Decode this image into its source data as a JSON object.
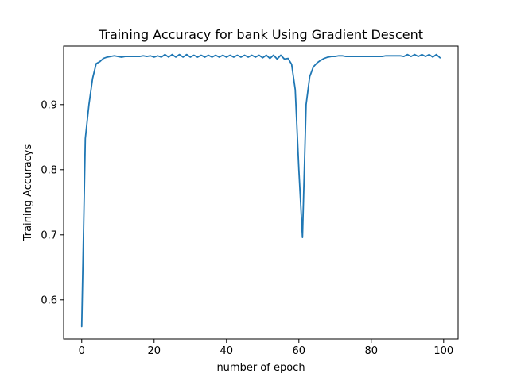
{
  "chart_data": {
    "type": "line",
    "title": "Training Accuracy for bank Using Gradient Descent",
    "xlabel": "number of epoch",
    "ylabel": "Training Accuracys",
    "xlim": [
      -5,
      104
    ],
    "ylim": [
      0.54,
      0.99
    ],
    "xticks": [
      0,
      20,
      40,
      60,
      80,
      100
    ],
    "yticks": [
      0.6,
      0.7,
      0.8,
      0.9
    ],
    "ytick_labels": [
      "0.6",
      "0.7",
      "0.8",
      "0.9"
    ],
    "grid": false,
    "color": "#1f77b4",
    "series": [
      {
        "x": [
          0,
          1,
          2,
          3,
          4,
          5,
          6,
          7,
          8,
          9,
          10,
          11,
          12,
          13,
          14,
          15,
          16,
          17,
          18,
          19,
          20,
          21,
          22,
          23,
          24,
          25,
          26,
          27,
          28,
          29,
          30,
          31,
          32,
          33,
          34,
          35,
          36,
          37,
          38,
          39,
          40,
          41,
          42,
          43,
          44,
          45,
          46,
          47,
          48,
          49,
          50,
          51,
          52,
          53,
          54,
          55,
          56,
          57,
          58,
          59,
          60,
          61,
          62,
          63,
          64,
          65,
          66,
          67,
          68,
          69,
          70,
          71,
          72,
          73,
          74,
          75,
          76,
          77,
          78,
          79,
          80,
          81,
          82,
          83,
          84,
          85,
          86,
          87,
          88,
          89,
          90,
          91,
          92,
          93,
          94,
          95,
          96,
          97,
          98,
          99
        ],
        "values": [
          0.559,
          0.848,
          0.9,
          0.94,
          0.963,
          0.966,
          0.971,
          0.973,
          0.974,
          0.975,
          0.974,
          0.973,
          0.974,
          0.974,
          0.974,
          0.974,
          0.974,
          0.975,
          0.974,
          0.975,
          0.973,
          0.975,
          0.973,
          0.977,
          0.973,
          0.977,
          0.973,
          0.977,
          0.973,
          0.977,
          0.973,
          0.976,
          0.973,
          0.976,
          0.973,
          0.976,
          0.973,
          0.976,
          0.973,
          0.976,
          0.973,
          0.976,
          0.973,
          0.976,
          0.973,
          0.976,
          0.973,
          0.976,
          0.973,
          0.976,
          0.972,
          0.976,
          0.971,
          0.976,
          0.97,
          0.976,
          0.97,
          0.971,
          0.962,
          0.923,
          0.8,
          0.696,
          0.9,
          0.943,
          0.958,
          0.964,
          0.968,
          0.971,
          0.973,
          0.974,
          0.974,
          0.975,
          0.975,
          0.974,
          0.974,
          0.974,
          0.974,
          0.974,
          0.974,
          0.974,
          0.974,
          0.974,
          0.974,
          0.974,
          0.975,
          0.975,
          0.975,
          0.975,
          0.975,
          0.974,
          0.977,
          0.974,
          0.977,
          0.974,
          0.977,
          0.974,
          0.977,
          0.973,
          0.977,
          0.972
        ]
      }
    ]
  }
}
